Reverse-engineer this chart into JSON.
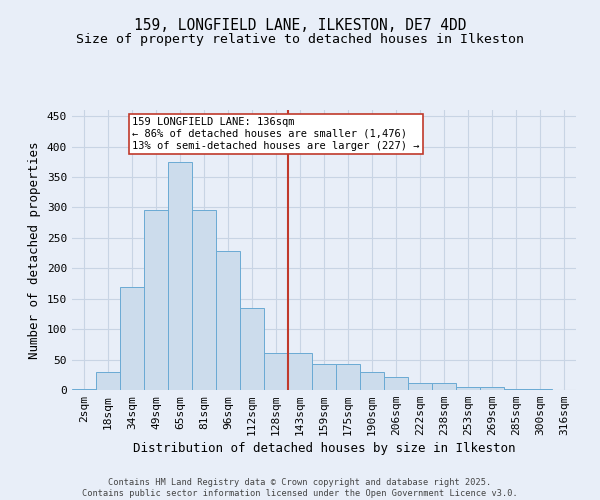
{
  "title": "159, LONGFIELD LANE, ILKESTON, DE7 4DD",
  "subtitle": "Size of property relative to detached houses in Ilkeston",
  "xlabel": "Distribution of detached houses by size in Ilkeston",
  "ylabel": "Number of detached properties",
  "footer": "Contains HM Land Registry data © Crown copyright and database right 2025.\nContains public sector information licensed under the Open Government Licence v3.0.",
  "bin_labels": [
    "2sqm",
    "18sqm",
    "34sqm",
    "49sqm",
    "65sqm",
    "81sqm",
    "96sqm",
    "112sqm",
    "128sqm",
    "143sqm",
    "159sqm",
    "175sqm",
    "190sqm",
    "206sqm",
    "222sqm",
    "238sqm",
    "253sqm",
    "269sqm",
    "285sqm",
    "300sqm",
    "316sqm"
  ],
  "bar_heights": [
    1,
    30,
    170,
    295,
    375,
    295,
    228,
    135,
    60,
    60,
    42,
    42,
    30,
    22,
    12,
    12,
    5,
    5,
    2,
    1,
    0
  ],
  "bar_color": "#ccdcec",
  "bar_edge_color": "#6aaad4",
  "bar_edge_width": 0.7,
  "vline_index": 8.5,
  "vline_color": "#c0392b",
  "annotation_title": "159 LONGFIELD LANE: 136sqm",
  "annotation_line2": "← 86% of detached houses are smaller (1,476)",
  "annotation_line3": "13% of semi-detached houses are larger (227) →",
  "annotation_box_facecolor": "#ffffff",
  "annotation_box_edgecolor": "#c0392b",
  "ylim": [
    0,
    460
  ],
  "yticks": [
    0,
    50,
    100,
    150,
    200,
    250,
    300,
    350,
    400,
    450
  ],
  "background_color": "#e8eef8",
  "plot_background": "#e8eef8",
  "grid_color": "#c8d4e4",
  "title_fontsize": 10.5,
  "subtitle_fontsize": 9.5,
  "xlabel_fontsize": 9,
  "ylabel_fontsize": 9,
  "tick_fontsize": 8,
  "footer_fontsize": 6.2
}
